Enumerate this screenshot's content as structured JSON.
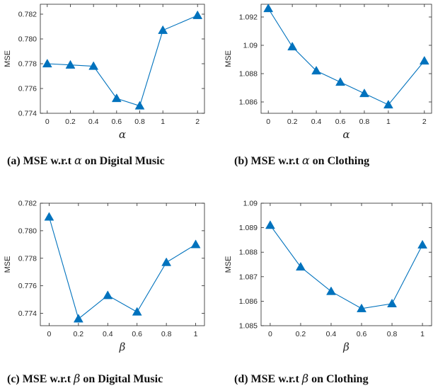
{
  "chart_data": [
    {
      "type": "line",
      "caption_prefix": "(a) MSE w.r.t ",
      "caption_symbol": "α",
      "caption_suffix": " on Digital Music",
      "xlabel": "α",
      "ylabel": "MSE",
      "categories": [
        "0",
        "0.2",
        "0.4",
        "0.6",
        "0.8",
        "1",
        "2"
      ],
      "x_positions": [
        0,
        1,
        2,
        3,
        4,
        5,
        6.5
      ],
      "x_range": [
        -0.3,
        6.8
      ],
      "values": [
        0.778,
        0.7779,
        0.7778,
        0.7752,
        0.7746,
        0.7807,
        0.7819
      ],
      "ylim": [
        0.774,
        0.7828
      ],
      "yticks": [
        0.774,
        0.776,
        0.778,
        0.78,
        0.782
      ],
      "ytick_labels": [
        "0.774",
        "0.776",
        "0.778",
        "0.780",
        "0.782"
      ]
    },
    {
      "type": "line",
      "caption_prefix": "(b) MSE w.r.t ",
      "caption_symbol": "α",
      "caption_suffix": " on Clothing",
      "xlabel": "α",
      "ylabel": "MSE",
      "categories": [
        "0",
        "0.2",
        "0.4",
        "0.6",
        "0.8",
        "1",
        "2"
      ],
      "x_positions": [
        0,
        1,
        2,
        3,
        4,
        5,
        6.5
      ],
      "x_range": [
        -0.3,
        6.8
      ],
      "values": [
        1.0926,
        1.0899,
        1.0882,
        1.0874,
        1.0866,
        1.0858,
        1.0889
      ],
      "ylim": [
        1.0852,
        1.0929
      ],
      "yticks": [
        1.086,
        1.088,
        1.09,
        1.092
      ],
      "ytick_labels": [
        "1.086",
        "1.088",
        "1.09",
        "1.092"
      ]
    },
    {
      "type": "line",
      "caption_prefix": "(c) MSE w.r.t ",
      "caption_symbol": "β",
      "caption_suffix": " on Digital Music",
      "xlabel": "β",
      "ylabel": "MSE",
      "categories": [
        "0",
        "0.2",
        "0.4",
        "0.6",
        "0.8",
        "1"
      ],
      "x_positions": [
        0,
        1,
        2,
        3,
        4,
        5
      ],
      "x_range": [
        -0.3,
        5.3
      ],
      "values": [
        0.781,
        0.7736,
        0.7753,
        0.7741,
        0.7777,
        0.779
      ],
      "ylim": [
        0.7731,
        0.782
      ],
      "yticks": [
        0.774,
        0.776,
        0.778,
        0.78,
        0.782
      ],
      "ytick_labels": [
        "0.774",
        "0.776",
        "0.778",
        "0.780",
        "0.782"
      ]
    },
    {
      "type": "line",
      "caption_prefix": "(d) MSE w.r.t ",
      "caption_symbol": "β",
      "caption_suffix": " on Clothing",
      "xlabel": "β",
      "ylabel": "MSE",
      "categories": [
        "0",
        "0.2",
        "0.4",
        "0.6",
        "0.8",
        "1"
      ],
      "x_positions": [
        0,
        1,
        2,
        3,
        4,
        5
      ],
      "x_range": [
        -0.3,
        5.3
      ],
      "values": [
        1.0891,
        1.0874,
        1.0864,
        1.0857,
        1.0859,
        1.0883
      ],
      "ylim": [
        1.085,
        1.09
      ],
      "yticks": [
        1.085,
        1.086,
        1.087,
        1.088,
        1.089,
        1.09
      ],
      "ytick_labels": [
        "1.085",
        "1.086",
        "1.087",
        "1.088",
        "1.089",
        "1.09"
      ]
    }
  ]
}
